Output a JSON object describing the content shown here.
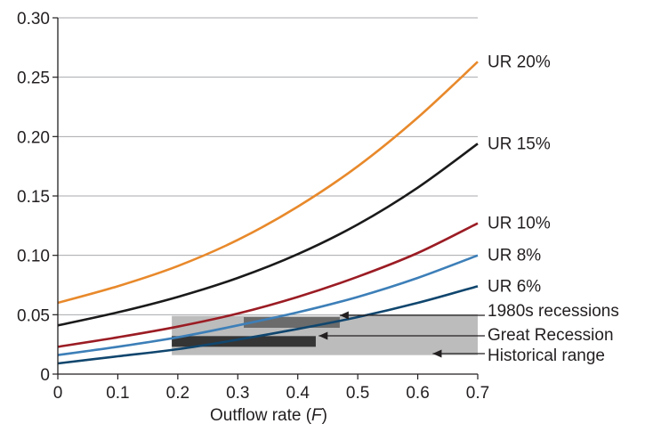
{
  "chart_data": {
    "type": "line",
    "xlabel": "Outflow rate (",
    "xlabel_var": "F",
    "xlabel_end": ")",
    "ylabel": "",
    "xlim": [
      0,
      0.7
    ],
    "ylim": [
      0,
      0.3
    ],
    "x_ticks": [
      0,
      0.1,
      0.2,
      0.3,
      0.4,
      0.5,
      0.6,
      0.7
    ],
    "x_tick_labels": [
      "0",
      "0.1",
      "0.2",
      "0.3",
      "0.4",
      "0.5",
      "0.6",
      "0.7"
    ],
    "y_ticks": [
      0,
      0.05,
      0.1,
      0.15,
      0.2,
      0.25,
      0.3
    ],
    "y_tick_labels": [
      "0",
      "0.05",
      "0.10",
      "0.15",
      "0.20",
      "0.25",
      "0.30"
    ],
    "grid": "horizontal",
    "series": [
      {
        "name": "UR 20%",
        "color": "#e8892b",
        "x": [
          0,
          0.1,
          0.2,
          0.3,
          0.4,
          0.5,
          0.6,
          0.7
        ],
        "values": [
          0.06,
          0.074,
          0.091,
          0.113,
          0.141,
          0.175,
          0.216,
          0.263
        ]
      },
      {
        "name": "UR 15%",
        "color": "#1a1a1a",
        "x": [
          0,
          0.1,
          0.2,
          0.3,
          0.4,
          0.5,
          0.6,
          0.7
        ],
        "values": [
          0.041,
          0.052,
          0.065,
          0.081,
          0.101,
          0.126,
          0.157,
          0.194
        ]
      },
      {
        "name": "UR 10%",
        "color": "#9b1c24",
        "x": [
          0,
          0.1,
          0.2,
          0.3,
          0.4,
          0.5,
          0.6,
          0.7
        ],
        "values": [
          0.023,
          0.031,
          0.04,
          0.051,
          0.065,
          0.082,
          0.102,
          0.127
        ]
      },
      {
        "name": "UR 8%",
        "color": "#3d7fb8",
        "x": [
          0,
          0.1,
          0.2,
          0.3,
          0.4,
          0.5,
          0.6,
          0.7
        ],
        "values": [
          0.016,
          0.023,
          0.031,
          0.041,
          0.052,
          0.065,
          0.081,
          0.1
        ]
      },
      {
        "name": "UR 6%",
        "color": "#10466e",
        "x": [
          0,
          0.1,
          0.2,
          0.3,
          0.4,
          0.5,
          0.6,
          0.7
        ],
        "values": [
          0.009,
          0.015,
          0.021,
          0.029,
          0.038,
          0.048,
          0.06,
          0.074
        ]
      }
    ],
    "ranges": [
      {
        "name": "Historical range",
        "color": "#bcbcbc",
        "x": [
          0.19,
          0.7
        ],
        "y": [
          0.016,
          0.049
        ]
      },
      {
        "name": "1980s recessions",
        "color": "#6b6b6b",
        "x": [
          0.31,
          0.47
        ],
        "y": [
          0.039,
          0.048
        ]
      },
      {
        "name": "Great Recession",
        "color": "#353535",
        "x": [
          0.19,
          0.43
        ],
        "y": [
          0.023,
          0.032
        ]
      }
    ]
  }
}
